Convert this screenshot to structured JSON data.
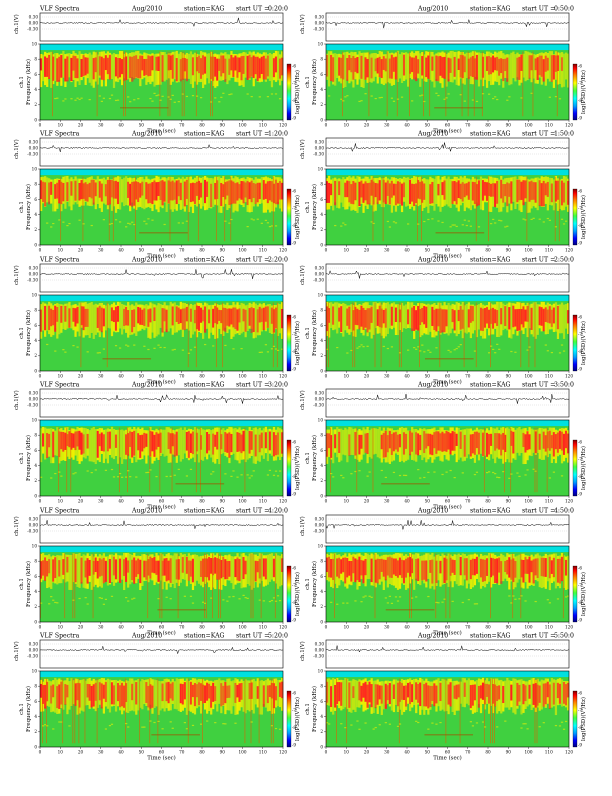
{
  "page": {
    "title": "VLF Spectra"
  },
  "panel_header": {
    "title": "VLF Spectra",
    "date": "Aug/2010",
    "station": "station=KAG",
    "start_prefix": "start  UT  ="
  },
  "labels": {
    "amp_ylabel": "ch.1(V)",
    "channel": "ch.1",
    "ylabel": "Frequency  (kHz)",
    "xlabel": "Time  (sec)",
    "colorbar_label": "log(PSD)(V²/Hz)"
  },
  "colors": {
    "background_low": "#00e0e0",
    "noise_green": "#40d040",
    "mid_yellow": "#f0f000",
    "high_red": "#ff2020",
    "colorbar": [
      "#000080",
      "#0000ff",
      "#00a0ff",
      "#00ffff",
      "#40ff40",
      "#ffff00",
      "#ff8000",
      "#ff0000",
      "#800000"
    ]
  },
  "chart_data": [
    {
      "type": "heatmap",
      "title": "VLF Spectra",
      "start_ut": "0:20:0",
      "xlabel": "Time (sec)",
      "ylabel": "Frequency (kHz)",
      "xlim": [
        0,
        120
      ],
      "ylim": [
        0,
        10
      ],
      "amp_ticks": [
        "0.30",
        "0.00",
        "-0.30"
      ],
      "x_ticks": [
        0,
        10,
        20,
        30,
        40,
        50,
        60,
        70,
        80,
        90,
        100,
        110,
        120
      ],
      "y_ticks": [
        0,
        2,
        4,
        6,
        8,
        10
      ],
      "colorbar_ticks": [
        "-6",
        "-7",
        "-8",
        "-9"
      ]
    },
    {
      "type": "heatmap",
      "title": "VLF Spectra",
      "start_ut": "0:50:0",
      "xlabel": "Time (sec)",
      "ylabel": "Frequency (kHz)",
      "xlim": [
        0,
        120
      ],
      "ylim": [
        0,
        10
      ],
      "amp_ticks": [
        "0.30",
        "0.00",
        "-0.30"
      ],
      "x_ticks": [
        0,
        10,
        20,
        30,
        40,
        50,
        60,
        70,
        80,
        90,
        100,
        110,
        120
      ],
      "y_ticks": [
        0,
        2,
        4,
        6,
        8,
        10
      ],
      "colorbar_ticks": [
        "-6",
        "-7",
        "-8",
        "-9"
      ]
    },
    {
      "type": "heatmap",
      "title": "VLF Spectra",
      "start_ut": "1:20:0",
      "xlabel": "Time (sec)",
      "ylabel": "Frequency (kHz)",
      "xlim": [
        0,
        120
      ],
      "ylim": [
        0,
        10
      ],
      "amp_ticks": [
        "0.30",
        "0.00",
        "-0.30"
      ],
      "x_ticks": [
        0,
        10,
        20,
        30,
        40,
        50,
        60,
        70,
        80,
        90,
        100,
        110,
        120
      ],
      "y_ticks": [
        0,
        2,
        4,
        6,
        8,
        10
      ],
      "colorbar_ticks": [
        "-6",
        "-7",
        "-8",
        "-9"
      ]
    },
    {
      "type": "heatmap",
      "title": "VLF Spectra",
      "start_ut": "1:50:0",
      "xlabel": "Time (sec)",
      "ylabel": "Frequency (kHz)",
      "xlim": [
        0,
        120
      ],
      "ylim": [
        0,
        10
      ],
      "amp_ticks": [
        "0.30",
        "0.00",
        "-0.30"
      ],
      "x_ticks": [
        0,
        10,
        20,
        30,
        40,
        50,
        60,
        70,
        80,
        90,
        100,
        110,
        120
      ],
      "y_ticks": [
        0,
        2,
        4,
        6,
        8,
        10
      ],
      "colorbar_ticks": [
        "-6",
        "-7",
        "-8",
        "-9"
      ]
    },
    {
      "type": "heatmap",
      "title": "VLF Spectra",
      "start_ut": "2:20:0",
      "xlabel": "Time (sec)",
      "ylabel": "Frequency (kHz)",
      "xlim": [
        0,
        120
      ],
      "ylim": [
        0,
        10
      ],
      "amp_ticks": [
        "0.30",
        "0.00",
        "-0.30"
      ],
      "x_ticks": [
        0,
        10,
        20,
        30,
        40,
        50,
        60,
        70,
        80,
        90,
        100,
        110,
        120
      ],
      "y_ticks": [
        0,
        2,
        4,
        6,
        8,
        10
      ],
      "colorbar_ticks": [
        "-6",
        "-7",
        "-8",
        "-9"
      ]
    },
    {
      "type": "heatmap",
      "title": "VLF Spectra",
      "start_ut": "2:50:0",
      "xlabel": "Time (sec)",
      "ylabel": "Frequency (kHz)",
      "xlim": [
        0,
        120
      ],
      "ylim": [
        0,
        10
      ],
      "amp_ticks": [
        "0.30",
        "0.00",
        "-0.30"
      ],
      "x_ticks": [
        0,
        10,
        20,
        30,
        40,
        50,
        60,
        70,
        80,
        90,
        100,
        110,
        120
      ],
      "y_ticks": [
        0,
        2,
        4,
        6,
        8,
        10
      ],
      "colorbar_ticks": [
        "-6",
        "-7",
        "-8",
        "-9"
      ]
    },
    {
      "type": "heatmap",
      "title": "VLF Spectra",
      "start_ut": "3:20:0",
      "xlabel": "Time (sec)",
      "ylabel": "Frequency (kHz)",
      "xlim": [
        0,
        120
      ],
      "ylim": [
        0,
        10
      ],
      "amp_ticks": [
        "0.30",
        "0.00",
        "-0.30"
      ],
      "x_ticks": [
        0,
        10,
        20,
        30,
        40,
        50,
        60,
        70,
        80,
        90,
        100,
        110,
        120
      ],
      "y_ticks": [
        0,
        2,
        4,
        6,
        8,
        10
      ],
      "colorbar_ticks": [
        "-6",
        "-7",
        "-8",
        "-9"
      ]
    },
    {
      "type": "heatmap",
      "title": "VLF Spectra",
      "start_ut": "3:50:0",
      "xlabel": "Time (sec)",
      "ylabel": "Frequency (kHz)",
      "xlim": [
        0,
        120
      ],
      "ylim": [
        0,
        10
      ],
      "amp_ticks": [
        "0.30",
        "0.00",
        "-0.30"
      ],
      "x_ticks": [
        0,
        10,
        20,
        30,
        40,
        50,
        60,
        70,
        80,
        90,
        100,
        110,
        120
      ],
      "y_ticks": [
        0,
        2,
        4,
        6,
        8,
        10
      ],
      "colorbar_ticks": [
        "-6",
        "-7",
        "-8",
        "-9"
      ]
    },
    {
      "type": "heatmap",
      "title": "VLF Spectra",
      "start_ut": "4:20:0",
      "xlabel": "Time (sec)",
      "ylabel": "Frequency (kHz)",
      "xlim": [
        0,
        120
      ],
      "ylim": [
        0,
        10
      ],
      "amp_ticks": [
        "0.30",
        "0.00",
        "-0.30"
      ],
      "x_ticks": [
        0,
        10,
        20,
        30,
        40,
        50,
        60,
        70,
        80,
        90,
        100,
        110,
        120
      ],
      "y_ticks": [
        0,
        2,
        4,
        6,
        8,
        10
      ],
      "colorbar_ticks": [
        "-6",
        "-7",
        "-8",
        "-9"
      ]
    },
    {
      "type": "heatmap",
      "title": "VLF Spectra",
      "start_ut": "4:50:0",
      "xlabel": "Time (sec)",
      "ylabel": "Frequency (kHz)",
      "xlim": [
        0,
        120
      ],
      "ylim": [
        0,
        10
      ],
      "amp_ticks": [
        "0.30",
        "0.00",
        "-0.30"
      ],
      "x_ticks": [
        0,
        10,
        20,
        30,
        40,
        50,
        60,
        70,
        80,
        90,
        100,
        110,
        120
      ],
      "y_ticks": [
        0,
        2,
        4,
        6,
        8,
        10
      ],
      "colorbar_ticks": [
        "-6",
        "-7",
        "-8",
        "-9"
      ]
    },
    {
      "type": "heatmap",
      "title": "VLF Spectra",
      "start_ut": "5:20:0",
      "xlabel": "Time (sec)",
      "ylabel": "Frequency (kHz)",
      "xlim": [
        0,
        120
      ],
      "ylim": [
        0,
        10
      ],
      "amp_ticks": [
        "0.30",
        "0.00",
        "-0.30"
      ],
      "x_ticks": [
        0,
        10,
        20,
        30,
        40,
        50,
        60,
        70,
        80,
        90,
        100,
        110,
        120
      ],
      "y_ticks": [
        0,
        2,
        4,
        6,
        8,
        10
      ],
      "colorbar_ticks": [
        "-6",
        "-7",
        "-8",
        "-9"
      ]
    },
    {
      "type": "heatmap",
      "title": "VLF Spectra",
      "start_ut": "5:50:0",
      "xlabel": "Time (sec)",
      "ylabel": "Frequency (kHz)",
      "xlim": [
        0,
        120
      ],
      "ylim": [
        0,
        10
      ],
      "amp_ticks": [
        "0.30",
        "0.00",
        "-0.30"
      ],
      "x_ticks": [
        0,
        10,
        20,
        30,
        40,
        50,
        60,
        70,
        80,
        90,
        100,
        110,
        120
      ],
      "y_ticks": [
        0,
        2,
        4,
        6,
        8,
        10
      ],
      "colorbar_ticks": [
        "-6",
        "-7",
        "-8",
        "-9"
      ]
    }
  ]
}
